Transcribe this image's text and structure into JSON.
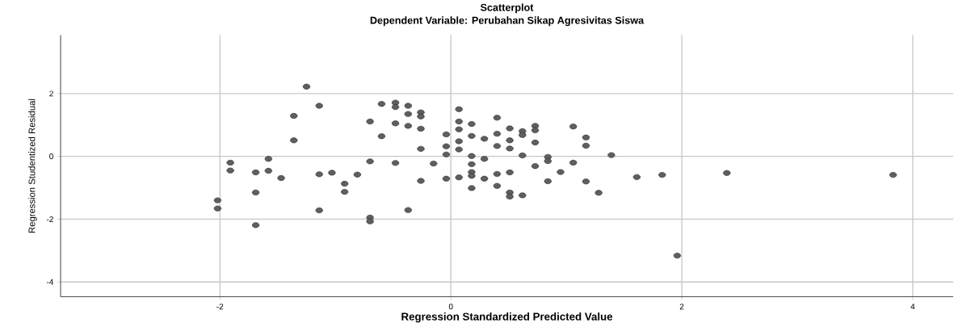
{
  "chart_data": {
    "type": "scatter",
    "title": "Scatterplot",
    "subtitle": "Dependent Variable: Perubahan Sikap Agresivitas Siswa",
    "xlabel": "Regression Standardized Predicted Value",
    "ylabel": "Regression Studentized Residual",
    "x": [
      -2.02,
      -2.02,
      -1.91,
      -1.91,
      -1.69,
      -1.69,
      -1.69,
      -1.58,
      -1.58,
      -1.47,
      -1.36,
      -1.36,
      -1.25,
      -1.14,
      -1.14,
      -1.14,
      -1.03,
      -0.92,
      -0.92,
      -0.81,
      -0.7,
      -0.7,
      -0.7,
      -0.7,
      -0.6,
      -0.6,
      -0.48,
      -0.48,
      -0.48,
      -0.48,
      -0.37,
      -0.37,
      -0.37,
      -0.37,
      -0.26,
      -0.26,
      -0.26,
      -0.26,
      -0.26,
      -0.15,
      -0.04,
      -0.04,
      -0.04,
      -0.04,
      0.07,
      0.07,
      0.07,
      0.07,
      0.07,
      0.07,
      0.18,
      0.18,
      0.18,
      0.18,
      0.18,
      0.18,
      0.18,
      0.29,
      0.29,
      0.29,
      0.4,
      0.4,
      0.4,
      0.4,
      0.4,
      0.51,
      0.51,
      0.51,
      0.51,
      0.51,
      0.51,
      0.62,
      0.62,
      0.62,
      0.62,
      0.73,
      0.73,
      0.73,
      0.73,
      0.84,
      0.84,
      0.84,
      0.95,
      1.06,
      1.06,
      1.17,
      1.17,
      1.17,
      1.28,
      1.39,
      1.61,
      1.83,
      1.96,
      2.39,
      3.83
    ],
    "values": [
      -1.4,
      -1.66,
      -0.2,
      -0.45,
      -0.51,
      -1.15,
      -2.19,
      -0.08,
      -0.46,
      -0.69,
      1.29,
      0.51,
      2.22,
      1.61,
      -0.57,
      -1.72,
      -0.52,
      -0.87,
      -1.13,
      -0.58,
      1.11,
      -0.16,
      -1.95,
      -2.07,
      1.67,
      0.64,
      1.71,
      1.57,
      1.05,
      -0.21,
      1.61,
      1.35,
      0.97,
      -1.71,
      1.4,
      1.27,
      0.88,
      0.24,
      -0.78,
      -0.23,
      0.7,
      0.32,
      0.06,
      -0.71,
      1.5,
      1.11,
      0.86,
      0.48,
      0.22,
      -0.67,
      1.03,
      0.65,
      0.01,
      -0.25,
      -0.5,
      -0.62,
      -1.01,
      0.56,
      -0.08,
      -0.71,
      1.23,
      0.72,
      0.33,
      -0.56,
      -0.94,
      0.89,
      0.51,
      0.25,
      -0.51,
      -1.15,
      -1.28,
      0.8,
      0.68,
      0.03,
      -1.24,
      0.97,
      0.83,
      0.44,
      -0.31,
      -0.02,
      -0.15,
      -0.79,
      -0.5,
      0.95,
      -0.2,
      0.6,
      0.34,
      -0.8,
      -1.16,
      0.04,
      -0.66,
      -0.59,
      -3.16,
      -0.53,
      -0.59
    ],
    "color": "#5f5f5f",
    "marker": "circle",
    "grid": true,
    "xlim": [
      -3.38,
      4.35
    ],
    "ylim": [
      -4.47,
      3.86
    ],
    "xticks": [
      -2,
      0,
      2,
      4
    ],
    "yticks": [
      -4,
      -2,
      0,
      2
    ]
  }
}
